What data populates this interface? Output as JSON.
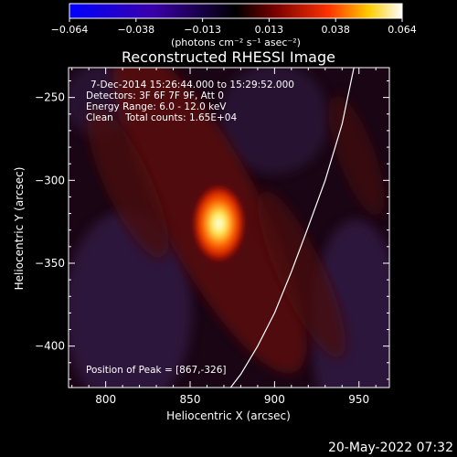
{
  "colorbar": {
    "ticks": [
      "−0.064",
      "−0.038",
      "−0.013",
      "0.013",
      "0.038",
      "0.064"
    ],
    "unit": "(photons cm⁻² s⁻¹ asec⁻²)",
    "stops": [
      "#0000ff",
      "#3a00aa",
      "#000000",
      "#7a0000",
      "#ff3300",
      "#ffcc00",
      "#ffffff"
    ]
  },
  "info": {
    "time_range": "7-Dec-2014 15:26:44.000 to 15:29:52.000",
    "detectors": "Detectors: 3F 6F 7F 9F, Att 0",
    "energy": "Energy Range: 6.0 - 12.0 keV",
    "clean": "Clean    Total counts: 1.65E+04",
    "peak": "Position of Peak = [867,-326]"
  },
  "footer": {
    "timestamp": "20-May-2022 07:32"
  },
  "chart_data": {
    "type": "heatmap",
    "title": "Reconstructed RHESSI Image",
    "xlabel": "Heliocentric X (arcsec)",
    "ylabel": "Heliocentric Y (arcsec)",
    "xlim": [
      778,
      968
    ],
    "ylim": [
      -425,
      -232
    ],
    "xticks": [
      "800",
      "850",
      "900",
      "950"
    ],
    "yticks": [
      "−250",
      "−300",
      "−350",
      "−400"
    ],
    "xtick_values": [
      800,
      850,
      900,
      950
    ],
    "ytick_values": [
      -250,
      -300,
      -350,
      -400
    ],
    "peak": {
      "x": 867,
      "y": -326
    },
    "limb_curve": {
      "x": [
        874,
        880,
        890,
        900,
        910,
        920,
        930,
        940,
        947
      ],
      "y": [
        -425,
        -417,
        -400,
        -380,
        -355,
        -328,
        -300,
        -266,
        -232
      ]
    }
  }
}
